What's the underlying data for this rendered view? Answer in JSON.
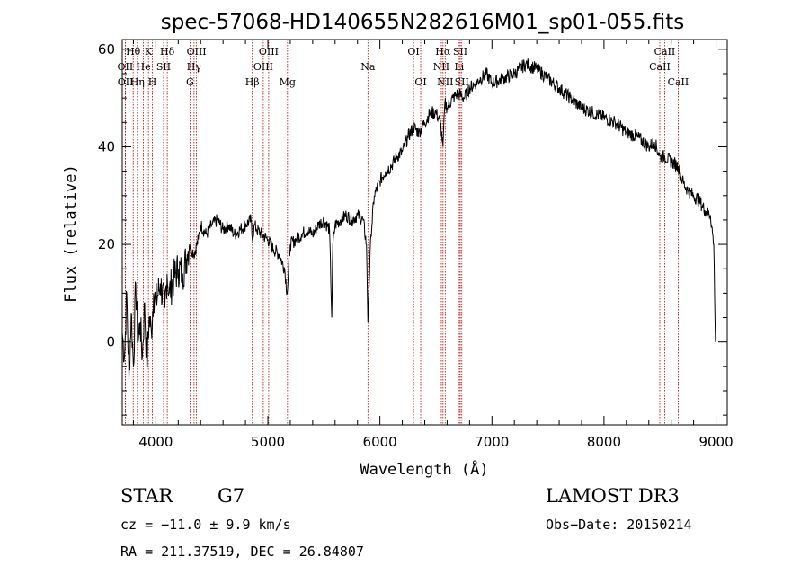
{
  "chart_data": {
    "type": "line",
    "title": "spec-57068-HD140655N282616M01_sp01-055.fits",
    "xlabel": "Wavelength (Å)",
    "ylabel": "Flux (relative)",
    "xlim": [
      3700,
      9100
    ],
    "ylim": [
      -17,
      62
    ],
    "xticks": [
      "4000",
      "5000",
      "6000",
      "7000",
      "8000",
      "9000"
    ],
    "yticks": [
      "0",
      "20",
      "40",
      "60"
    ],
    "series": [
      {
        "x": [
          3700,
          3720,
          3740,
          3760,
          3780,
          3800,
          3820,
          3840,
          3860,
          3880,
          3900,
          3920,
          3940,
          3960,
          3980,
          4000,
          4040,
          4080,
          4100,
          4120,
          4160,
          4200,
          4240,
          4280,
          4300,
          4340,
          4380,
          4400,
          4450,
          4500,
          4550,
          4600,
          4650,
          4700,
          4750,
          4800,
          4850,
          4861,
          4880,
          4900,
          4950,
          5000,
          5050,
          5100,
          5150,
          5172,
          5200,
          5250,
          5300,
          5350,
          5400,
          5450,
          5500,
          5550,
          5570,
          5580,
          5600,
          5650,
          5700,
          5750,
          5800,
          5850,
          5880,
          5893,
          5900,
          5920,
          5950,
          6000,
          6050,
          6100,
          6150,
          6200,
          6250,
          6300,
          6350,
          6400,
          6450,
          6500,
          6540,
          6563,
          6580,
          6600,
          6650,
          6700,
          6750,
          6800,
          6850,
          6900,
          6950,
          7000,
          7100,
          7200,
          7300,
          7400,
          7500,
          7600,
          7700,
          7800,
          7900,
          8000,
          8100,
          8200,
          8300,
          8400,
          8450,
          8500,
          8542,
          8600,
          8662,
          8700,
          8750,
          8800,
          8850,
          8900,
          8950,
          8980,
          8995
        ],
        "y": [
          2,
          -3,
          10,
          -8,
          6,
          -5,
          12,
          0,
          4,
          -3,
          8,
          -5,
          5,
          2,
          10,
          8,
          12,
          7,
          14,
          10,
          13,
          15,
          14,
          18,
          20,
          18,
          21,
          24,
          22,
          24,
          25,
          23,
          24,
          22,
          23,
          24,
          25,
          21,
          24,
          23,
          22,
          21,
          19,
          18,
          15,
          10,
          20,
          21,
          22,
          23,
          22,
          24,
          25,
          23,
          5,
          20,
          24,
          25,
          26,
          25,
          26,
          25,
          20,
          4,
          10,
          22,
          30,
          33,
          35,
          36,
          38,
          39,
          42,
          44,
          43,
          45,
          47,
          47,
          45,
          40,
          49,
          48,
          50,
          51,
          50,
          52,
          53,
          54,
          55,
          53,
          54,
          55,
          57,
          56,
          54,
          52,
          50,
          48,
          47,
          46,
          45,
          43,
          42,
          40,
          41,
          38,
          38,
          37,
          36,
          33,
          31,
          30,
          29,
          27,
          26,
          20,
          0
        ]
      }
    ],
    "annotations": [
      {
        "label": "Hθ",
        "x": 3798,
        "row": 0
      },
      {
        "label": "K",
        "x": 3934,
        "row": 0
      },
      {
        "label": "Hδ",
        "x": 4102,
        "row": 0
      },
      {
        "label": "OIII",
        "x": 4363,
        "row": 0
      },
      {
        "label": "OIII",
        "x": 5007,
        "row": 0
      },
      {
        "label": "OI",
        "x": 6300,
        "row": 0
      },
      {
        "label": "Hα",
        "x": 6563,
        "row": 0
      },
      {
        "label": "SII",
        "x": 6717,
        "row": 0
      },
      {
        "label": "CaII",
        "x": 8542,
        "row": 0
      },
      {
        "label": "OII",
        "x": 3727,
        "row": 1
      },
      {
        "label": "He",
        "x": 3889,
        "row": 1
      },
      {
        "label": "SII",
        "x": 4069,
        "row": 1
      },
      {
        "label": "Hγ",
        "x": 4341,
        "row": 1
      },
      {
        "label": "OIII",
        "x": 4959,
        "row": 1
      },
      {
        "label": "Na",
        "x": 5893,
        "row": 1
      },
      {
        "label": "NII",
        "x": 6548,
        "row": 1
      },
      {
        "label": "Li",
        "x": 6708,
        "row": 1
      },
      {
        "label": "CaII",
        "x": 8498,
        "row": 1
      },
      {
        "label": "OII",
        "x": 3729,
        "row": 2
      },
      {
        "label": "Hη",
        "x": 3835,
        "row": 2
      },
      {
        "label": "H",
        "x": 3969,
        "row": 2
      },
      {
        "label": "G",
        "x": 4305,
        "row": 2
      },
      {
        "label": "Hβ",
        "x": 4861,
        "row": 2
      },
      {
        "label": "Mg",
        "x": 5175,
        "row": 2
      },
      {
        "label": "OI",
        "x": 6364,
        "row": 2
      },
      {
        "label": "NII",
        "x": 6583,
        "row": 2
      },
      {
        "label": "SII",
        "x": 6731,
        "row": 2
      },
      {
        "label": "CaII",
        "x": 8662,
        "row": 2
      }
    ]
  },
  "info": {
    "object_class": "STAR",
    "subclass": "G7",
    "survey": "LAMOST DR3",
    "cz": "cz = −11.0 ± 9.9 km/s",
    "obs_date": "Obs−Date: 20150214",
    "coords": "RA = 211.37519, DEC =  26.84807"
  }
}
